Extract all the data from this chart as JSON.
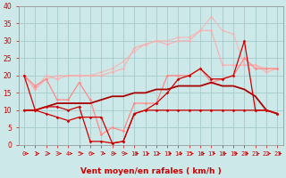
{
  "x": [
    0,
    1,
    2,
    3,
    4,
    5,
    6,
    7,
    8,
    9,
    10,
    11,
    12,
    13,
    14,
    15,
    16,
    17,
    18,
    19,
    20,
    21,
    22,
    23
  ],
  "bg_color": "#cce8e8",
  "grid_color": "#aacfcf",
  "xlabel": "Vent moyen/en rafales ( km/h )",
  "xlabel_color": "#cc0000",
  "tick_color": "#cc0000",
  "ylim": [
    0,
    40
  ],
  "xlim": [
    -0.5,
    23.5
  ],
  "yticks": [
    0,
    5,
    10,
    15,
    20,
    25,
    30,
    35,
    40
  ],
  "series": [
    {
      "y": [
        20,
        16,
        19,
        20,
        20,
        20,
        20,
        21,
        22,
        24,
        27,
        29,
        30,
        30,
        31,
        31,
        33,
        37,
        33,
        32,
        23,
        23,
        22,
        22
      ],
      "color": "#ffaaaa",
      "marker": "D",
      "markersize": 1.8,
      "linewidth": 0.9,
      "alpha": 0.7,
      "zorder": 2
    },
    {
      "y": [
        20,
        16,
        20,
        19,
        20,
        20,
        20,
        20,
        21,
        22,
        28,
        29,
        30,
        29,
        30,
        30,
        33,
        33,
        23,
        23,
        23,
        23,
        21,
        22
      ],
      "color": "#ffaaaa",
      "marker": "D",
      "markersize": 1.8,
      "linewidth": 0.9,
      "alpha": 0.85,
      "zorder": 2
    },
    {
      "y": [
        20,
        17,
        19,
        13,
        13,
        18,
        13,
        3,
        5,
        4,
        12,
        12,
        12,
        20,
        20,
        20,
        22,
        18,
        19,
        20,
        25,
        22,
        22,
        22
      ],
      "color": "#ff8888",
      "marker": "D",
      "markersize": 1.8,
      "linewidth": 0.9,
      "alpha": 1.0,
      "zorder": 3
    },
    {
      "y": [
        10,
        10,
        11,
        12,
        12,
        12,
        12,
        13,
        14,
        14,
        15,
        15,
        16,
        16,
        17,
        17,
        17,
        18,
        17,
        17,
        16,
        14,
        10,
        9
      ],
      "color": "#aa0000",
      "marker": null,
      "markersize": 0,
      "linewidth": 1.3,
      "alpha": 1.0,
      "zorder": 4
    },
    {
      "y": [
        10,
        10,
        11,
        11,
        10,
        11,
        1,
        1,
        0.5,
        1,
        9,
        10,
        10,
        10,
        10,
        10,
        10,
        10,
        10,
        10,
        10,
        10,
        10,
        9
      ],
      "color": "#cc0000",
      "marker": "D",
      "markersize": 1.8,
      "linewidth": 0.9,
      "alpha": 1.0,
      "zorder": 5
    },
    {
      "y": [
        20,
        10,
        9,
        8,
        7,
        8,
        8,
        8,
        0.5,
        1,
        9,
        10,
        12,
        15,
        19,
        20,
        22,
        19,
        19,
        20,
        30,
        10,
        10,
        9
      ],
      "color": "#cc0000",
      "marker": "D",
      "markersize": 1.8,
      "linewidth": 0.9,
      "alpha": 1.0,
      "zorder": 5
    }
  ]
}
